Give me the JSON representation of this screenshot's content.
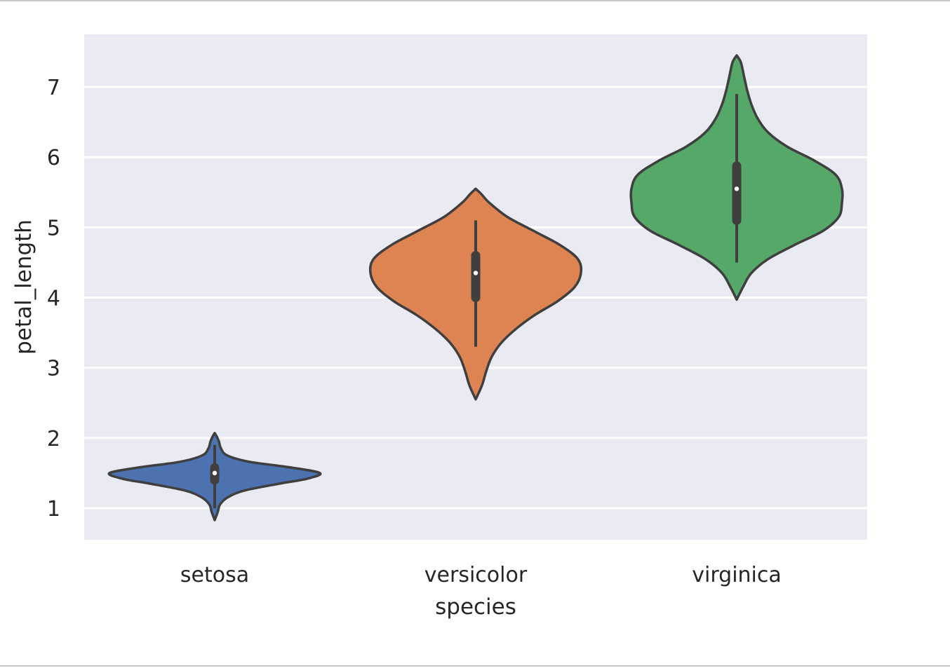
{
  "chart_data": {
    "type": "violin",
    "xlabel": "species",
    "ylabel": "petal_length",
    "categories": [
      "setosa",
      "versicolor",
      "virginica"
    ],
    "ylim": [
      0.55,
      7.75
    ],
    "yticks": [
      "1",
      "2",
      "3",
      "4",
      "5",
      "6",
      "7"
    ],
    "grid": true,
    "background": "#eaeaf2",
    "gridColor": "#ffffff",
    "outlineColor": "#3f3f3f",
    "violins": [
      {
        "category": "setosa",
        "color": "#4c72b0",
        "min": 1.0,
        "q1": 1.4,
        "median": 1.5,
        "q3": 1.575,
        "max": 1.9,
        "kde_min": 0.83,
        "kde_max": 2.07,
        "profile": [
          [
            0.83,
            0.0
          ],
          [
            0.95,
            0.03
          ],
          [
            1.05,
            0.05
          ],
          [
            1.15,
            0.12
          ],
          [
            1.25,
            0.28
          ],
          [
            1.35,
            0.62
          ],
          [
            1.42,
            0.88
          ],
          [
            1.5,
            1.0
          ],
          [
            1.58,
            0.72
          ],
          [
            1.66,
            0.33
          ],
          [
            1.75,
            0.12
          ],
          [
            1.85,
            0.06
          ],
          [
            1.95,
            0.04
          ],
          [
            2.02,
            0.02
          ],
          [
            2.07,
            0.0
          ]
        ]
      },
      {
        "category": "versicolor",
        "color": "#dd8452",
        "min": 3.3,
        "q1": 4.0,
        "median": 4.35,
        "q3": 4.6,
        "max": 5.1,
        "kde_min": 2.55,
        "kde_max": 5.55,
        "profile": [
          [
            2.55,
            0.0
          ],
          [
            2.75,
            0.06
          ],
          [
            2.95,
            0.1
          ],
          [
            3.15,
            0.15
          ],
          [
            3.35,
            0.24
          ],
          [
            3.55,
            0.38
          ],
          [
            3.75,
            0.56
          ],
          [
            3.95,
            0.78
          ],
          [
            4.15,
            0.94
          ],
          [
            4.35,
            1.0
          ],
          [
            4.55,
            0.97
          ],
          [
            4.75,
            0.8
          ],
          [
            4.95,
            0.55
          ],
          [
            5.15,
            0.3
          ],
          [
            5.35,
            0.13
          ],
          [
            5.48,
            0.05
          ],
          [
            5.55,
            0.0
          ]
        ]
      },
      {
        "category": "virginica",
        "color": "#55a868",
        "min": 4.5,
        "q1": 5.1,
        "median": 5.55,
        "q3": 5.875,
        "max": 6.9,
        "kde_min": 3.97,
        "kde_max": 7.45,
        "profile": [
          [
            3.97,
            0.0
          ],
          [
            4.15,
            0.06
          ],
          [
            4.35,
            0.14
          ],
          [
            4.55,
            0.3
          ],
          [
            4.75,
            0.55
          ],
          [
            4.95,
            0.82
          ],
          [
            5.15,
            0.97
          ],
          [
            5.35,
            1.0
          ],
          [
            5.55,
            1.0
          ],
          [
            5.75,
            0.94
          ],
          [
            5.95,
            0.74
          ],
          [
            6.15,
            0.48
          ],
          [
            6.35,
            0.3
          ],
          [
            6.55,
            0.2
          ],
          [
            6.75,
            0.14
          ],
          [
            6.95,
            0.1
          ],
          [
            7.15,
            0.07
          ],
          [
            7.35,
            0.04
          ],
          [
            7.45,
            0.0
          ]
        ]
      }
    ]
  }
}
